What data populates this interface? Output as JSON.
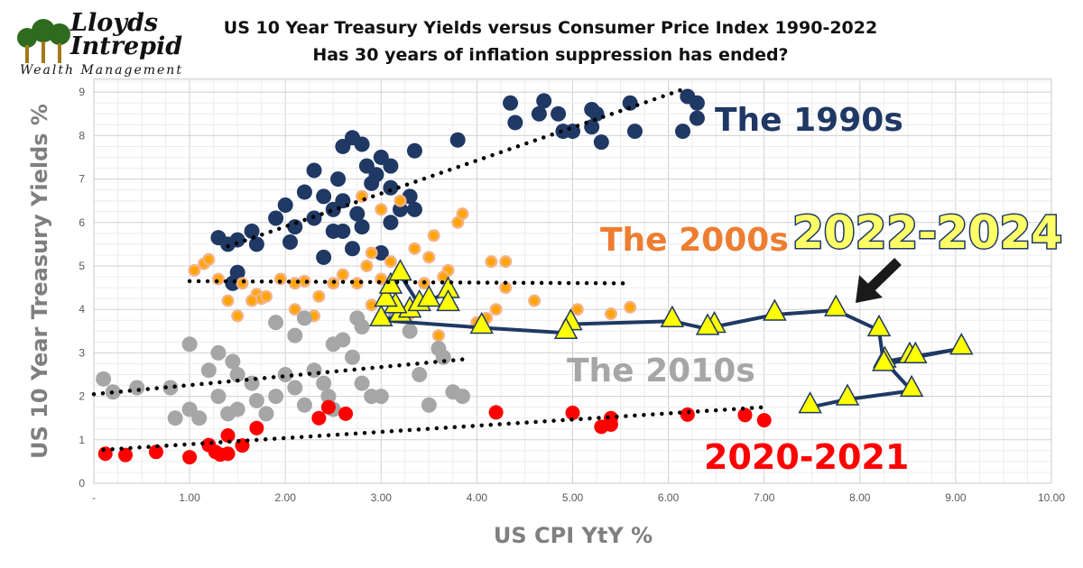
{
  "logo": {
    "line1": "Lloyds",
    "line2": "Intrepid",
    "line3": "Wealth Management"
  },
  "chart_data": {
    "type": "scatter",
    "title": "US 10 Year Treasury Yields versus Consumer Price Index 1990-2022",
    "subtitle": "Has 30 years of inflation suppression has ended?",
    "xlabel": "US CPI YtY %",
    "ylabel": "US 10 Year Treasury Yields %",
    "xlim": [
      0,
      10
    ],
    "ylim": [
      0,
      9.3
    ],
    "x_ticks": [
      "-",
      "1.00",
      "2.00",
      "3.00",
      "4.00",
      "5.00",
      "6.00",
      "7.00",
      "8.00",
      "9.00",
      "10.00"
    ],
    "y_ticks": [
      "0",
      "1",
      "2",
      "3",
      "4",
      "5",
      "6",
      "7",
      "8",
      "9"
    ],
    "grid": true,
    "annotations": [
      {
        "text": "The 1990s",
        "color": "#1f3864"
      },
      {
        "text": "The 2000s",
        "color": "#ed7d31"
      },
      {
        "text": "2022-2024",
        "color": "#ffff66"
      },
      {
        "text": "The 2010s",
        "color": "#a6a6a6"
      },
      {
        "text": "2020-2021",
        "color": "#ff0000"
      }
    ],
    "series": [
      {
        "id": "1990s",
        "marker": "circle",
        "color": "#1f3864",
        "trend": [
          [
            1.4,
            5.45
          ],
          [
            6.2,
            9.1
          ]
        ],
        "points": [
          [
            4.35,
            8.75
          ],
          [
            4.7,
            8.8
          ],
          [
            4.65,
            8.5
          ],
          [
            4.85,
            8.5
          ],
          [
            4.4,
            8.3
          ],
          [
            4.9,
            8.1
          ],
          [
            5.0,
            8.1
          ],
          [
            5.2,
            8.6
          ],
          [
            5.25,
            8.5
          ],
          [
            5.3,
            7.85
          ],
          [
            5.2,
            8.2
          ],
          [
            5.6,
            8.75
          ],
          [
            5.65,
            8.1
          ],
          [
            6.15,
            8.1
          ],
          [
            6.2,
            8.9
          ],
          [
            6.3,
            8.75
          ],
          [
            6.3,
            8.4
          ],
          [
            3.8,
            7.9
          ],
          [
            3.35,
            7.65
          ],
          [
            2.7,
            7.95
          ],
          [
            2.8,
            7.8
          ],
          [
            2.6,
            7.75
          ],
          [
            2.3,
            7.2
          ],
          [
            2.55,
            7.0
          ],
          [
            2.85,
            7.3
          ],
          [
            3.0,
            7.5
          ],
          [
            3.1,
            7.3
          ],
          [
            2.2,
            6.7
          ],
          [
            2.4,
            6.6
          ],
          [
            2.0,
            6.4
          ],
          [
            2.5,
            6.3
          ],
          [
            2.3,
            6.1
          ],
          [
            1.9,
            6.1
          ],
          [
            2.1,
            5.9
          ],
          [
            1.65,
            5.8
          ],
          [
            1.5,
            5.6
          ],
          [
            1.3,
            5.65
          ],
          [
            1.4,
            5.5
          ],
          [
            1.7,
            5.5
          ],
          [
            2.05,
            5.55
          ],
          [
            1.5,
            4.85
          ],
          [
            1.45,
            4.6
          ],
          [
            2.5,
            5.8
          ],
          [
            2.8,
            5.9
          ],
          [
            3.1,
            6.0
          ],
          [
            3.2,
            6.3
          ],
          [
            2.6,
            6.5
          ],
          [
            2.9,
            6.9
          ],
          [
            3.3,
            6.6
          ],
          [
            3.0,
            5.3
          ],
          [
            2.7,
            5.4
          ],
          [
            2.6,
            5.8
          ],
          [
            2.75,
            6.2
          ],
          [
            3.1,
            6.8
          ],
          [
            2.95,
            7.1
          ],
          [
            2.4,
            5.2
          ],
          [
            3.35,
            6.3
          ]
        ]
      },
      {
        "id": "2000s",
        "marker": "circle",
        "color": "#ed7d31",
        "trend": [
          [
            1.0,
            4.65
          ],
          [
            5.6,
            4.6
          ]
        ],
        "points": [
          [
            1.05,
            4.9
          ],
          [
            1.15,
            5.05
          ],
          [
            1.2,
            5.15
          ],
          [
            1.3,
            4.7
          ],
          [
            1.55,
            4.6
          ],
          [
            1.7,
            4.35
          ],
          [
            1.75,
            4.25
          ],
          [
            1.8,
            4.3
          ],
          [
            1.95,
            4.7
          ],
          [
            2.1,
            4.6
          ],
          [
            2.2,
            4.65
          ],
          [
            2.35,
            4.3
          ],
          [
            2.1,
            4.0
          ],
          [
            2.3,
            3.85
          ],
          [
            1.5,
            3.85
          ],
          [
            1.65,
            4.2
          ],
          [
            2.5,
            4.6
          ],
          [
            2.75,
            4.6
          ],
          [
            2.9,
            4.1
          ],
          [
            3.1,
            4.5
          ],
          [
            2.85,
            5.0
          ],
          [
            2.9,
            5.3
          ],
          [
            3.1,
            5.1
          ],
          [
            3.35,
            5.4
          ],
          [
            3.5,
            5.2
          ],
          [
            3.7,
            4.9
          ],
          [
            3.8,
            6.0
          ],
          [
            3.85,
            6.2
          ],
          [
            3.55,
            5.7
          ],
          [
            3.0,
            6.3
          ],
          [
            3.2,
            6.5
          ],
          [
            2.8,
            6.6
          ],
          [
            4.15,
            5.1
          ],
          [
            4.3,
            5.1
          ],
          [
            4.3,
            4.5
          ],
          [
            4.0,
            3.7
          ],
          [
            4.1,
            3.8
          ],
          [
            4.2,
            4.0
          ],
          [
            4.6,
            4.2
          ],
          [
            5.05,
            4.0
          ],
          [
            5.6,
            4.05
          ],
          [
            5.4,
            3.9
          ],
          [
            4.95,
            3.65
          ],
          [
            1.4,
            4.2
          ],
          [
            3.3,
            3.9
          ],
          [
            3.6,
            3.4
          ],
          [
            2.6,
            4.8
          ],
          [
            3.0,
            4.7
          ],
          [
            3.45,
            4.6
          ],
          [
            3.65,
            4.75
          ]
        ]
      },
      {
        "id": "2010s",
        "marker": "circle",
        "color": "#a6a6a6",
        "trend": [
          [
            0.0,
            2.05
          ],
          [
            3.85,
            2.85
          ]
        ],
        "points": [
          [
            0.1,
            2.4
          ],
          [
            0.2,
            2.1
          ],
          [
            0.45,
            2.2
          ],
          [
            0.8,
            2.2
          ],
          [
            0.85,
            1.5
          ],
          [
            1.0,
            3.2
          ],
          [
            1.0,
            1.7
          ],
          [
            1.1,
            1.5
          ],
          [
            1.2,
            2.6
          ],
          [
            1.3,
            3.0
          ],
          [
            1.3,
            2.0
          ],
          [
            1.45,
            2.8
          ],
          [
            1.5,
            2.5
          ],
          [
            1.5,
            1.7
          ],
          [
            1.7,
            1.9
          ],
          [
            1.65,
            2.3
          ],
          [
            1.8,
            1.6
          ],
          [
            1.9,
            2.0
          ],
          [
            2.0,
            2.5
          ],
          [
            2.1,
            3.4
          ],
          [
            2.1,
            2.2
          ],
          [
            2.2,
            1.8
          ],
          [
            2.3,
            2.6
          ],
          [
            2.4,
            2.3
          ],
          [
            2.45,
            2.0
          ],
          [
            2.5,
            1.7
          ],
          [
            2.5,
            3.2
          ],
          [
            2.7,
            2.9
          ],
          [
            2.8,
            2.3
          ],
          [
            2.9,
            2.0
          ],
          [
            3.0,
            2.0
          ],
          [
            2.8,
            3.6
          ],
          [
            2.75,
            3.8
          ],
          [
            3.3,
            3.5
          ],
          [
            3.4,
            2.5
          ],
          [
            3.6,
            3.1
          ],
          [
            3.65,
            2.9
          ],
          [
            3.75,
            2.1
          ],
          [
            3.85,
            2.0
          ],
          [
            3.5,
            1.8
          ],
          [
            1.4,
            1.6
          ],
          [
            1.9,
            3.7
          ],
          [
            2.2,
            3.8
          ],
          [
            2.6,
            3.3
          ],
          [
            3.15,
            3.9
          ]
        ]
      },
      {
        "id": "2020-2021",
        "marker": "circle",
        "color": "#ff0000",
        "trend": [
          [
            0.1,
            0.77
          ],
          [
            7.0,
            1.75
          ]
        ],
        "points": [
          [
            0.12,
            0.68
          ],
          [
            0.33,
            0.65
          ],
          [
            0.65,
            0.72
          ],
          [
            1.0,
            0.6
          ],
          [
            1.2,
            0.88
          ],
          [
            1.27,
            0.72
          ],
          [
            1.32,
            0.66
          ],
          [
            1.4,
            0.68
          ],
          [
            1.4,
            1.1
          ],
          [
            1.55,
            0.87
          ],
          [
            1.7,
            1.27
          ],
          [
            2.35,
            1.5
          ],
          [
            2.63,
            1.6
          ],
          [
            2.45,
            1.75
          ],
          [
            4.2,
            1.63
          ],
          [
            5.0,
            1.62
          ],
          [
            5.3,
            1.3
          ],
          [
            5.4,
            1.35
          ],
          [
            5.4,
            1.5
          ],
          [
            6.2,
            1.58
          ],
          [
            6.8,
            1.57
          ],
          [
            7.0,
            1.45
          ]
        ]
      },
      {
        "id": "2022-2024",
        "marker": "triangle",
        "color": "#ffff00",
        "line_color": "#1f3864",
        "points": [
          [
            7.48,
            1.75
          ],
          [
            7.87,
            1.93
          ],
          [
            8.54,
            2.13
          ],
          [
            8.26,
            2.8
          ],
          [
            8.52,
            2.9
          ],
          [
            9.06,
            3.1
          ],
          [
            8.58,
            2.9
          ],
          [
            8.25,
            2.72
          ],
          [
            8.2,
            3.52
          ],
          [
            7.75,
            3.98
          ],
          [
            7.11,
            3.88
          ],
          [
            6.48,
            3.6
          ],
          [
            6.41,
            3.55
          ],
          [
            6.04,
            3.73
          ],
          [
            4.98,
            3.66
          ],
          [
            4.93,
            3.46
          ],
          [
            4.05,
            3.58
          ],
          [
            3.0,
            3.75
          ],
          [
            3.2,
            3.85
          ],
          [
            3.3,
            3.95
          ],
          [
            3.15,
            4.05
          ],
          [
            3.05,
            4.2
          ],
          [
            3.1,
            4.5
          ],
          [
            3.2,
            4.8
          ],
          [
            3.4,
            4.1
          ],
          [
            3.5,
            4.2
          ],
          [
            3.7,
            4.4
          ],
          [
            3.7,
            4.1
          ]
        ]
      }
    ]
  }
}
